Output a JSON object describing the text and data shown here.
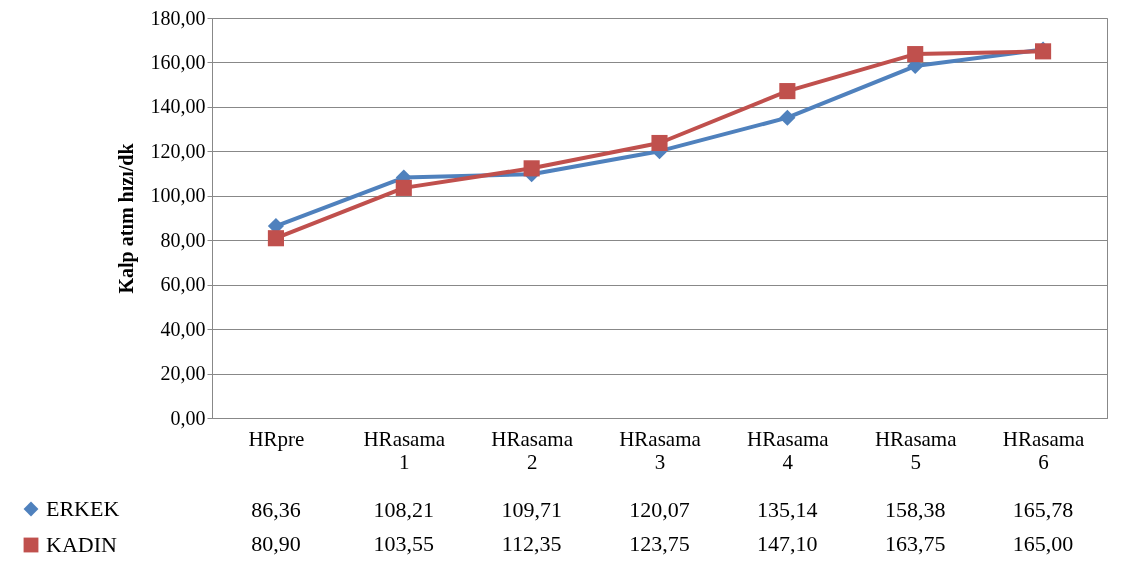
{
  "chart_data": {
    "type": "line",
    "ylabel": "Kalp atım hızı/dk",
    "categories": [
      "HRpre",
      "HRasama 1",
      "HRasama 2",
      "HRasama 3",
      "HRasama 4",
      "HRasama 5",
      "HRasama 6"
    ],
    "series": [
      {
        "name": "ERKEK",
        "color": "#4f81bd",
        "marker": "diamond",
        "values": [
          86.36,
          108.21,
          109.71,
          120.07,
          135.14,
          158.38,
          165.78
        ],
        "value_labels": [
          "86,36",
          "108,21",
          "109,71",
          "120,07",
          "135,14",
          "158,38",
          "165,78"
        ]
      },
      {
        "name": "KADIN",
        "color": "#c0504d",
        "marker": "square",
        "values": [
          80.9,
          103.55,
          112.35,
          123.75,
          147.1,
          163.75,
          165.0
        ],
        "value_labels": [
          "80,90",
          "103,55",
          "112,35",
          "123,75",
          "147,10",
          "163,75",
          "165,00"
        ]
      }
    ],
    "ylim": [
      0,
      180
    ],
    "yticks": [
      {
        "value": 0,
        "label": "0,00"
      },
      {
        "value": 20,
        "label": "20,00"
      },
      {
        "value": 40,
        "label": "40,00"
      },
      {
        "value": 60,
        "label": "60,00"
      },
      {
        "value": 80,
        "label": "80,00"
      },
      {
        "value": 100,
        "label": "100,00"
      },
      {
        "value": 120,
        "label": "120,00"
      },
      {
        "value": 140,
        "label": "140,00"
      },
      {
        "value": 160,
        "label": "160,00"
      },
      {
        "value": 180,
        "label": "180,00"
      }
    ],
    "grid": "y",
    "legend": "bottom left"
  }
}
